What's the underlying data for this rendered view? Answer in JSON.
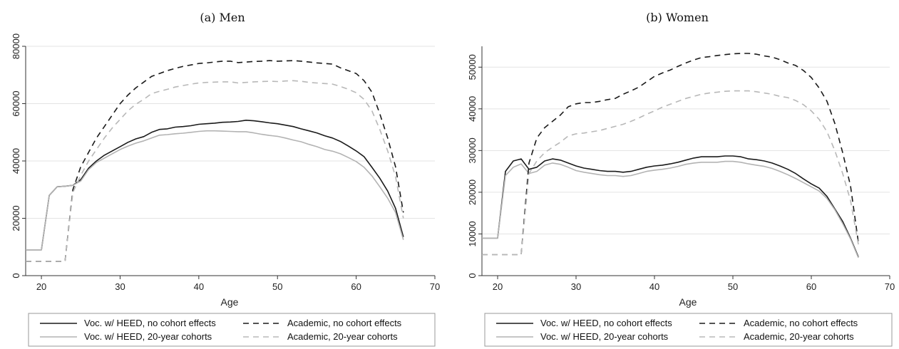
{
  "chart_data": [
    {
      "type": "line",
      "title": "(a) Men",
      "xlabel": "Age",
      "ylabel": "",
      "xlim": [
        18,
        70
      ],
      "ylim": [
        0,
        80000
      ],
      "xticks": [
        20,
        30,
        40,
        50,
        60,
        70
      ],
      "yticks": [
        0,
        20000,
        40000,
        60000,
        80000
      ],
      "grid": true,
      "legend_position": "bottom",
      "series": [
        {
          "name": "Voc. w/ HEED, no cohort effects",
          "color": "#1a1a1a",
          "dash": "solid",
          "x": [
            18,
            20,
            21,
            22,
            23,
            24,
            25,
            26,
            27,
            28,
            29,
            30,
            31,
            32,
            33,
            34,
            35,
            36,
            37,
            38,
            39,
            40,
            41,
            42,
            43,
            44,
            45,
            46,
            47,
            48,
            49,
            50,
            51,
            52,
            53,
            54,
            55,
            56,
            57,
            58,
            59,
            60,
            61,
            62,
            63,
            64,
            65,
            66
          ],
          "y": [
            9000,
            9000,
            28000,
            31000,
            31200,
            31500,
            33500,
            37500,
            40000,
            42000,
            43500,
            45000,
            46500,
            47700,
            48500,
            50000,
            51000,
            51200,
            51800,
            52000,
            52300,
            52800,
            53000,
            53200,
            53500,
            53600,
            53800,
            54200,
            54000,
            53700,
            53300,
            53000,
            52500,
            52000,
            51200,
            50500,
            49800,
            48800,
            48000,
            46800,
            45200,
            43500,
            41500,
            37800,
            34000,
            29500,
            23500,
            13500
          ]
        },
        {
          "name": "Voc. w/ HEED, 20-year cohorts",
          "color": "#b3b3b3",
          "dash": "solid",
          "x": [
            18,
            20,
            21,
            22,
            23,
            24,
            25,
            26,
            27,
            28,
            29,
            30,
            31,
            32,
            33,
            34,
            35,
            36,
            37,
            38,
            39,
            40,
            41,
            42,
            43,
            44,
            45,
            46,
            47,
            48,
            49,
            50,
            51,
            52,
            53,
            54,
            55,
            56,
            57,
            58,
            59,
            60,
            61,
            62,
            63,
            64,
            65,
            66
          ],
          "y": [
            9000,
            9000,
            28000,
            31000,
            31200,
            31500,
            33000,
            37000,
            39500,
            41000,
            42500,
            44000,
            45200,
            46200,
            47000,
            48000,
            49000,
            49200,
            49500,
            49700,
            50000,
            50300,
            50500,
            50500,
            50400,
            50300,
            50200,
            50200,
            49800,
            49300,
            48900,
            48600,
            48000,
            47300,
            46700,
            45800,
            45000,
            44000,
            43400,
            42500,
            41200,
            39800,
            37800,
            34800,
            31000,
            27000,
            22000,
            12500
          ]
        },
        {
          "name": "Academic, no cohort effects",
          "color": "#1a1a1a",
          "dash": "8,6",
          "x": [
            18,
            20,
            23,
            24,
            25,
            26,
            27,
            28,
            29,
            30,
            31,
            32,
            33,
            34,
            35,
            36,
            37,
            38,
            39,
            40,
            41,
            42,
            43,
            44,
            45,
            46,
            47,
            48,
            49,
            50,
            51,
            52,
            53,
            54,
            55,
            56,
            57,
            58,
            59,
            60,
            61,
            62,
            63,
            64,
            65,
            66
          ],
          "y": [
            5000,
            5000,
            5000,
            30000,
            38000,
            43000,
            48000,
            52000,
            56000,
            60000,
            63000,
            65500,
            67500,
            69500,
            70500,
            71500,
            72300,
            73000,
            73500,
            74000,
            74200,
            74500,
            74800,
            74800,
            74300,
            74500,
            74700,
            74800,
            75000,
            74800,
            74900,
            75000,
            74800,
            74500,
            74200,
            74000,
            73800,
            72500,
            71500,
            70500,
            68000,
            64000,
            56500,
            48000,
            38000,
            22000
          ]
        },
        {
          "name": "Academic, 20-year cohorts",
          "color": "#b8b8b8",
          "dash": "8,6",
          "x": [
            18,
            20,
            23,
            24,
            25,
            26,
            27,
            28,
            29,
            30,
            31,
            32,
            33,
            34,
            35,
            36,
            37,
            38,
            39,
            40,
            41,
            42,
            43,
            44,
            45,
            46,
            47,
            48,
            49,
            50,
            51,
            52,
            53,
            54,
            55,
            56,
            57,
            58,
            59,
            60,
            61,
            62,
            63,
            64,
            65,
            66
          ],
          "y": [
            5000,
            5000,
            5000,
            29000,
            35000,
            40000,
            44000,
            48000,
            51500,
            54500,
            57500,
            59800,
            61500,
            63500,
            64300,
            65000,
            65800,
            66300,
            66800,
            67200,
            67400,
            67500,
            67600,
            67600,
            67200,
            67400,
            67600,
            67700,
            67800,
            67700,
            67900,
            68000,
            67800,
            67400,
            67200,
            67000,
            66800,
            66000,
            65000,
            63800,
            61500,
            57500,
            51000,
            43500,
            34500,
            20000
          ]
        }
      ]
    },
    {
      "type": "line",
      "title": "(b) Women",
      "xlabel": "Age",
      "ylabel": "",
      "xlim": [
        18,
        70
      ],
      "ylim": [
        0,
        55000
      ],
      "xticks": [
        20,
        30,
        40,
        50,
        60,
        70
      ],
      "yticks": [
        0,
        10000,
        20000,
        30000,
        40000,
        50000
      ],
      "grid": true,
      "legend_position": "bottom",
      "series": [
        {
          "name": "Voc. w/ HEED, no cohort effects",
          "color": "#1a1a1a",
          "dash": "solid",
          "x": [
            18,
            20,
            21,
            22,
            23,
            24,
            25,
            26,
            27,
            28,
            29,
            30,
            31,
            32,
            33,
            34,
            35,
            36,
            37,
            38,
            39,
            40,
            41,
            42,
            43,
            44,
            45,
            46,
            47,
            48,
            49,
            50,
            51,
            52,
            53,
            54,
            55,
            56,
            57,
            58,
            59,
            60,
            61,
            62,
            63,
            64,
            65,
            66
          ],
          "y": [
            9000,
            9000,
            25000,
            27500,
            28000,
            25500,
            26000,
            27500,
            28000,
            27700,
            27000,
            26300,
            25800,
            25500,
            25200,
            25000,
            25000,
            24800,
            25000,
            25500,
            26000,
            26300,
            26500,
            26800,
            27200,
            27700,
            28200,
            28500,
            28500,
            28500,
            28700,
            28700,
            28500,
            28000,
            27800,
            27500,
            27000,
            26300,
            25500,
            24500,
            23200,
            22000,
            21000,
            19000,
            16000,
            13000,
            9000,
            4500
          ]
        },
        {
          "name": "Voc. w/ HEED, 20-year cohorts",
          "color": "#b3b3b3",
          "dash": "solid",
          "x": [
            18,
            20,
            21,
            22,
            23,
            24,
            25,
            26,
            27,
            28,
            29,
            30,
            31,
            32,
            33,
            34,
            35,
            36,
            37,
            38,
            39,
            40,
            41,
            42,
            43,
            44,
            45,
            46,
            47,
            48,
            49,
            50,
            51,
            52,
            53,
            54,
            55,
            56,
            57,
            58,
            59,
            60,
            61,
            62,
            63,
            64,
            65,
            66
          ],
          "y": [
            9000,
            9000,
            24000,
            26000,
            26800,
            24500,
            25000,
            26500,
            27000,
            26700,
            26000,
            25200,
            24800,
            24500,
            24200,
            24000,
            24000,
            23800,
            24000,
            24500,
            25000,
            25300,
            25500,
            25800,
            26200,
            26700,
            27000,
            27200,
            27200,
            27200,
            27400,
            27400,
            27200,
            26800,
            26500,
            26200,
            25700,
            25000,
            24200,
            23300,
            22300,
            21300,
            20300,
            18500,
            15800,
            12500,
            8800,
            4300
          ]
        },
        {
          "name": "Academic, no cohort effects",
          "color": "#1a1a1a",
          "dash": "8,6",
          "x": [
            18,
            20,
            23,
            24,
            25,
            26,
            27,
            28,
            29,
            30,
            31,
            32,
            33,
            34,
            35,
            36,
            37,
            38,
            39,
            40,
            41,
            42,
            43,
            44,
            45,
            46,
            47,
            48,
            49,
            50,
            51,
            52,
            53,
            54,
            55,
            56,
            57,
            58,
            59,
            60,
            61,
            62,
            63,
            64,
            65,
            66
          ],
          "y": [
            5000,
            5000,
            5000,
            27000,
            33000,
            35500,
            37000,
            38500,
            40500,
            41200,
            41500,
            41500,
            41800,
            42200,
            42500,
            43500,
            44300,
            45200,
            46500,
            47800,
            48600,
            49300,
            50200,
            51000,
            51700,
            52300,
            52500,
            52800,
            53000,
            53200,
            53300,
            53300,
            53100,
            52700,
            52400,
            51800,
            51000,
            50400,
            49200,
            47500,
            45000,
            41800,
            36500,
            29500,
            21500,
            8000
          ]
        },
        {
          "name": "Academic, 20-year cohorts",
          "color": "#b8b8b8",
          "dash": "8,6",
          "x": [
            18,
            20,
            23,
            24,
            25,
            26,
            27,
            28,
            29,
            30,
            31,
            32,
            33,
            34,
            35,
            36,
            37,
            38,
            39,
            40,
            41,
            42,
            43,
            44,
            45,
            46,
            47,
            48,
            49,
            50,
            51,
            52,
            53,
            54,
            55,
            56,
            57,
            58,
            59,
            60,
            61,
            62,
            63,
            64,
            65,
            66
          ],
          "y": [
            5000,
            5000,
            5000,
            24500,
            27500,
            29500,
            30800,
            32000,
            33500,
            34000,
            34200,
            34500,
            34800,
            35300,
            35800,
            36300,
            37000,
            37800,
            38700,
            39500,
            40400,
            41100,
            41800,
            42500,
            43000,
            43500,
            43800,
            44000,
            44200,
            44300,
            44300,
            44300,
            44100,
            43800,
            43500,
            43000,
            42700,
            42000,
            41000,
            39500,
            37500,
            34500,
            30000,
            24500,
            18000,
            7500
          ]
        }
      ]
    }
  ]
}
